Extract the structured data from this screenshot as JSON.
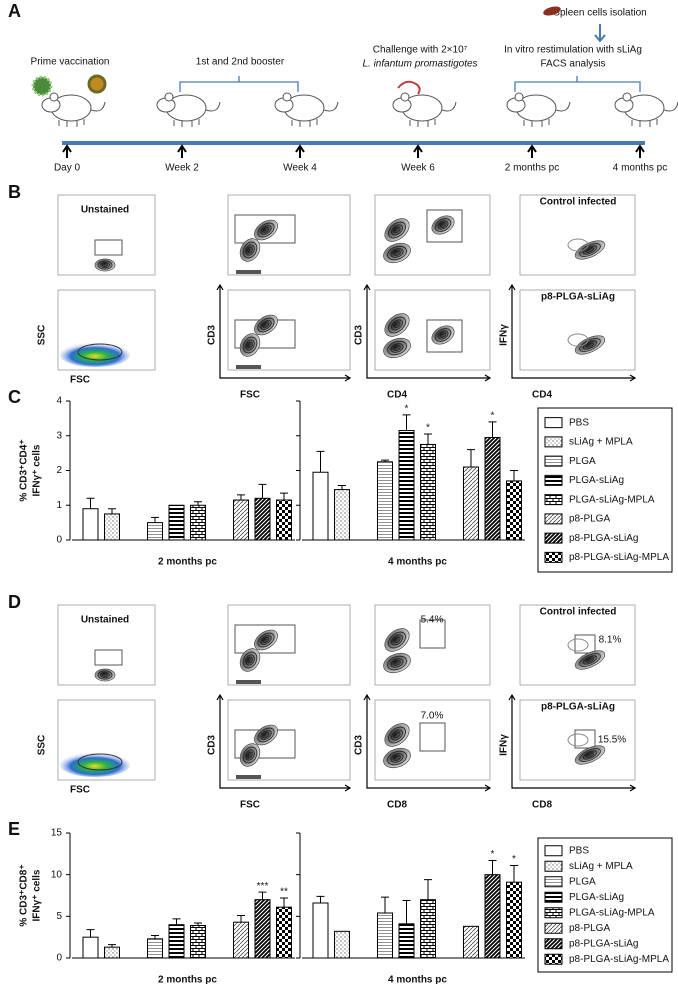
{
  "panel_a": {
    "label": "A",
    "prime": "Prime vaccination",
    "booster": "1st and 2nd booster",
    "challenge": [
      "Challenge with 2×10⁷",
      "L. infantum promastigotes"
    ],
    "isolation": "Spleen cells isolation",
    "restimulation": [
      "In vitro restimulation with sLiAg",
      "FACS analysis"
    ],
    "timepoints": [
      "Day 0",
      "Week 2",
      "Week 4",
      "Week 6",
      "2 months pc",
      "4 months pc"
    ]
  },
  "panel_b": {
    "label": "B",
    "titles": [
      "Unstained",
      "Control infected",
      "p8-PLGA-sLiAg"
    ],
    "axes": [
      [
        "SSC",
        "FSC"
      ],
      [
        "CD3",
        "FSC"
      ],
      [
        "CD3",
        "CD4"
      ],
      [
        "IFNγ",
        "CD4"
      ]
    ]
  },
  "panel_d": {
    "label": "D",
    "titles": [
      "Unstained",
      "Control infected",
      "p8-PLGA-sLiAg"
    ],
    "axes": [
      [
        "SSC",
        "FSC"
      ],
      [
        "CD3",
        "FSC"
      ],
      [
        "CD3",
        "CD8"
      ],
      [
        "IFNγ",
        "CD8"
      ]
    ],
    "gates": [
      "5.4%",
      "8.1%",
      "7.0%",
      "15.5%"
    ]
  },
  "chart_data": [
    {
      "type": "bar",
      "label": "C",
      "ylabel": [
        "% CD3⁺CD4⁺",
        "IFNγ⁺ cells"
      ],
      "categories": [
        "2 months pc",
        "4 months pc"
      ],
      "ylim": [
        0,
        4
      ],
      "yticks": [
        0,
        1,
        2,
        3,
        4
      ],
      "series": [
        {
          "name": "PBS",
          "pattern": "open",
          "values": [
            0.9,
            1.95
          ],
          "errors": [
            0.3,
            0.6
          ],
          "annotations": [
            null,
            null
          ]
        },
        {
          "name": "sLiAg + MPLA",
          "pattern": "dots",
          "values": [
            0.75,
            1.45
          ],
          "errors": [
            0.15,
            0.12
          ],
          "annotations": [
            null,
            null
          ]
        },
        {
          "name": "PLGA",
          "pattern": "hlines",
          "values": [
            0.5,
            2.25
          ],
          "errors": [
            0.15,
            0.05
          ],
          "annotations": [
            null,
            null
          ]
        },
        {
          "name": "PLGA-sLiAg",
          "pattern": "hbold",
          "values": [
            1.0,
            3.15
          ],
          "errors": [
            null,
            0.45
          ],
          "annotations": [
            null,
            "*"
          ]
        },
        {
          "name": "PLGA-sLiAg-MPLA",
          "pattern": "bricks",
          "values": [
            1.0,
            2.75
          ],
          "errors": [
            0.1,
            0.3
          ],
          "annotations": [
            null,
            "*"
          ]
        },
        {
          "name": "p8-PLGA",
          "pattern": "diag",
          "values": [
            1.15,
            2.1
          ],
          "errors": [
            0.15,
            0.5
          ],
          "annotations": [
            null,
            null
          ]
        },
        {
          "name": "p8-PLGA-sLiAg",
          "pattern": "darkdiag",
          "values": [
            1.2,
            2.95
          ],
          "errors": [
            0.4,
            0.45
          ],
          "annotations": [
            null,
            "*"
          ]
        },
        {
          "name": "p8-PLGA-sLiAg-MPLA",
          "pattern": "checker",
          "values": [
            1.15,
            1.7
          ],
          "errors": [
            0.2,
            0.3
          ],
          "annotations": [
            null,
            null
          ]
        }
      ]
    },
    {
      "type": "bar",
      "label": "E",
      "ylabel": [
        "% CD3⁺CD8⁺",
        "IFNγ⁺ cells"
      ],
      "categories": [
        "2 months pc",
        "4 months pc"
      ],
      "ylim": [
        0,
        15
      ],
      "yticks": [
        0,
        5,
        10,
        15
      ],
      "series": [
        {
          "name": "PBS",
          "pattern": "open",
          "values": [
            2.5,
            6.6
          ],
          "errors": [
            0.9,
            0.8
          ],
          "annotations": [
            null,
            null
          ]
        },
        {
          "name": "sLiAg + MPLA",
          "pattern": "dots",
          "values": [
            1.3,
            3.2
          ],
          "errors": [
            0.3,
            null
          ],
          "annotations": [
            null,
            null
          ]
        },
        {
          "name": "PLGA",
          "pattern": "hlines",
          "values": [
            2.3,
            5.4
          ],
          "errors": [
            0.4,
            1.9
          ],
          "annotations": [
            null,
            null
          ]
        },
        {
          "name": "PLGA-sLiAg",
          "pattern": "hbold",
          "values": [
            4.0,
            4.1
          ],
          "errors": [
            0.7,
            2.8
          ],
          "annotations": [
            null,
            null
          ]
        },
        {
          "name": "PLGA-sLiAg-MPLA",
          "pattern": "bricks",
          "values": [
            3.9,
            7.0
          ],
          "errors": [
            0.3,
            2.4
          ],
          "annotations": [
            null,
            null
          ]
        },
        {
          "name": "p8-PLGA",
          "pattern": "diag",
          "values": [
            4.3,
            3.8
          ],
          "errors": [
            0.8,
            null
          ],
          "annotations": [
            null,
            null
          ]
        },
        {
          "name": "p8-PLGA-sLiAg",
          "pattern": "darkdiag",
          "values": [
            7.0,
            10.0
          ],
          "errors": [
            0.9,
            1.7
          ],
          "annotations": [
            "***",
            "*"
          ]
        },
        {
          "name": "p8-PLGA-sLiAg-MPLA",
          "pattern": "checker",
          "values": [
            6.1,
            9.1
          ],
          "errors": [
            1.1,
            2.0
          ],
          "annotations": [
            "**",
            "*"
          ]
        }
      ]
    }
  ]
}
